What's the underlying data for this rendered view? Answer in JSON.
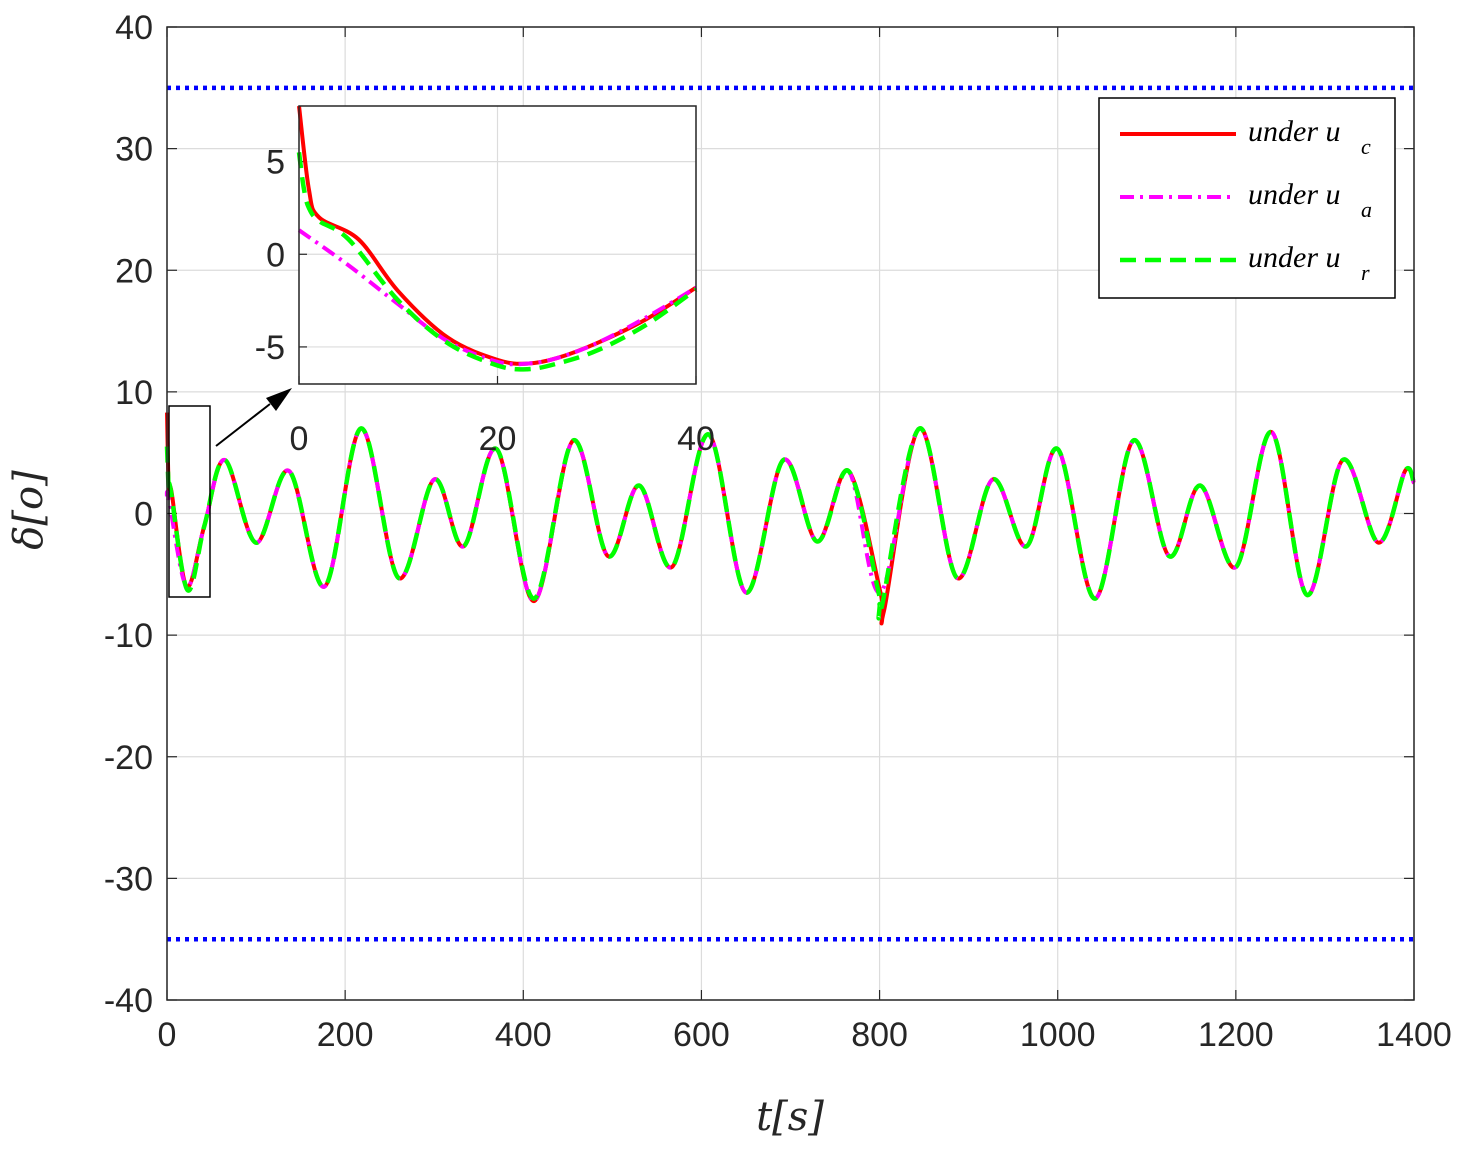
{
  "chart_data": {
    "type": "line",
    "xlabel": "t[s]",
    "ylabel": "δ[o]",
    "xlim": [
      0,
      1400
    ],
    "ylim": [
      -40,
      40
    ],
    "xticks": [
      "0",
      "200",
      "400",
      "600",
      "800",
      "1000",
      "1200",
      "1400"
    ],
    "yticks": [
      "40",
      "30",
      "20",
      "10",
      "0",
      "-10",
      "-20",
      "-30",
      "-40"
    ],
    "grid": true,
    "legend_position": "top-right",
    "colors": {
      "uc": "#ff0000",
      "ua": "#ff00ff",
      "ur": "#00ff00",
      "bound": "#0000ff"
    },
    "legend": [
      {
        "text": "under u",
        "sub": "c",
        "style": "solid",
        "color": "#ff0000"
      },
      {
        "text": "under u",
        "sub": "a",
        "style": "dashdot",
        "color": "#ff00ff"
      },
      {
        "text": "under u",
        "sub": "r",
        "style": "dashed",
        "color": "#00ff00"
      }
    ],
    "bounds": [
      35,
      -35
    ],
    "series": [
      {
        "name": "under u_c",
        "x": [
          0,
          2,
          5,
          22,
          42,
          65,
          100,
          137,
          177,
          218,
          260,
          300,
          333,
          370,
          412,
          456,
          495,
          530,
          567,
          608,
          650,
          692,
          730,
          765,
          801,
          805,
          845,
          887,
          927,
          965,
          1000,
          1042,
          1085,
          1125,
          1160,
          1200,
          1240,
          1280,
          1320,
          1360,
          1390,
          1400
        ],
        "y": [
          8.3,
          2.0,
          1.8,
          -6.0,
          -1.0,
          4.4,
          -2.4,
          3.5,
          -6.0,
          7.0,
          -5.3,
          2.8,
          -2.7,
          5.3,
          -7.2,
          6.0,
          -3.5,
          2.3,
          -4.4,
          6.5,
          -6.5,
          4.4,
          -2.3,
          3.5,
          -6.5,
          -8.0,
          7.0,
          -5.3,
          2.8,
          -2.7,
          5.3,
          -7.0,
          6.0,
          -3.5,
          2.3,
          -4.4,
          6.7,
          -6.7,
          4.4,
          -2.4,
          3.5,
          2.5
        ]
      },
      {
        "name": "under u_a",
        "x": [
          0,
          2,
          22,
          42,
          65,
          100,
          137,
          177,
          218,
          260,
          300,
          333,
          370,
          412,
          456,
          495,
          530,
          567,
          608,
          650,
          692,
          730,
          765,
          801,
          845,
          887,
          927,
          965,
          1000,
          1042,
          1085,
          1125,
          1160,
          1200,
          1240,
          1280,
          1320,
          1360,
          1390,
          1400
        ],
        "y": [
          1.3,
          1.2,
          -6.0,
          -1.0,
          4.4,
          -2.4,
          3.5,
          -6.0,
          7.0,
          -5.3,
          2.8,
          -2.7,
          5.3,
          -7.2,
          6.0,
          -3.5,
          2.3,
          -4.4,
          6.5,
          -6.5,
          4.4,
          -2.3,
          3.5,
          -6.5,
          7.0,
          -5.3,
          2.8,
          -2.7,
          5.3,
          -7.0,
          6.0,
          -3.5,
          2.3,
          -4.4,
          6.7,
          -6.7,
          4.4,
          -2.4,
          3.5,
          2.5
        ]
      },
      {
        "name": "under u_r",
        "x": [
          0,
          2,
          4,
          23,
          42,
          65,
          100,
          137,
          177,
          218,
          260,
          300,
          333,
          370,
          412,
          456,
          495,
          530,
          567,
          608,
          650,
          692,
          730,
          765,
          798,
          800,
          803,
          845,
          887,
          927,
          965,
          1000,
          1042,
          1085,
          1125,
          1160,
          1200,
          1240,
          1280,
          1320,
          1360,
          1390,
          1400
        ],
        "y": [
          5.5,
          2.0,
          2.0,
          -6.3,
          -1.0,
          4.4,
          -2.4,
          3.5,
          -6.0,
          7.0,
          -5.3,
          2.8,
          -2.7,
          5.3,
          -7.0,
          6.0,
          -3.5,
          2.3,
          -4.4,
          6.5,
          -6.5,
          4.4,
          -2.3,
          3.5,
          -6.2,
          -7.5,
          -7.5,
          7.0,
          -5.3,
          2.8,
          -2.7,
          5.3,
          -7.0,
          6.0,
          -3.5,
          2.3,
          -4.4,
          6.7,
          -6.7,
          4.4,
          -2.4,
          3.5,
          2.5
        ]
      }
    ],
    "inset": {
      "xlim": [
        0,
        40
      ],
      "ylim": [
        -7,
        8
      ],
      "xticks": [
        "0",
        "20",
        "40"
      ],
      "yticks": [
        "5",
        "0",
        "-5"
      ],
      "series": [
        {
          "name": "under u_c",
          "x": [
            0,
            1,
            2,
            6,
            10,
            15,
            20,
            23,
            26,
            30,
            35,
            40
          ],
          "y": [
            8.0,
            3.5,
            2.0,
            0.8,
            -2.0,
            -4.5,
            -5.7,
            -5.9,
            -5.6,
            -4.8,
            -3.5,
            -1.8
          ]
        },
        {
          "name": "under u_a",
          "x": [
            0,
            5,
            10,
            15,
            20,
            23,
            26,
            30,
            35,
            40
          ],
          "y": [
            1.3,
            -0.6,
            -2.7,
            -4.7,
            -5.8,
            -5.9,
            -5.6,
            -4.8,
            -3.4,
            -1.8
          ]
        },
        {
          "name": "under u_r",
          "x": [
            0,
            0.5,
            1,
            2,
            5,
            10,
            15,
            20,
            23,
            26,
            30,
            35,
            40
          ],
          "y": [
            5.5,
            3.5,
            2.5,
            1.8,
            0.8,
            -2.5,
            -4.8,
            -6.0,
            -6.2,
            -5.9,
            -5.2,
            -3.8,
            -1.9
          ]
        }
      ]
    }
  }
}
